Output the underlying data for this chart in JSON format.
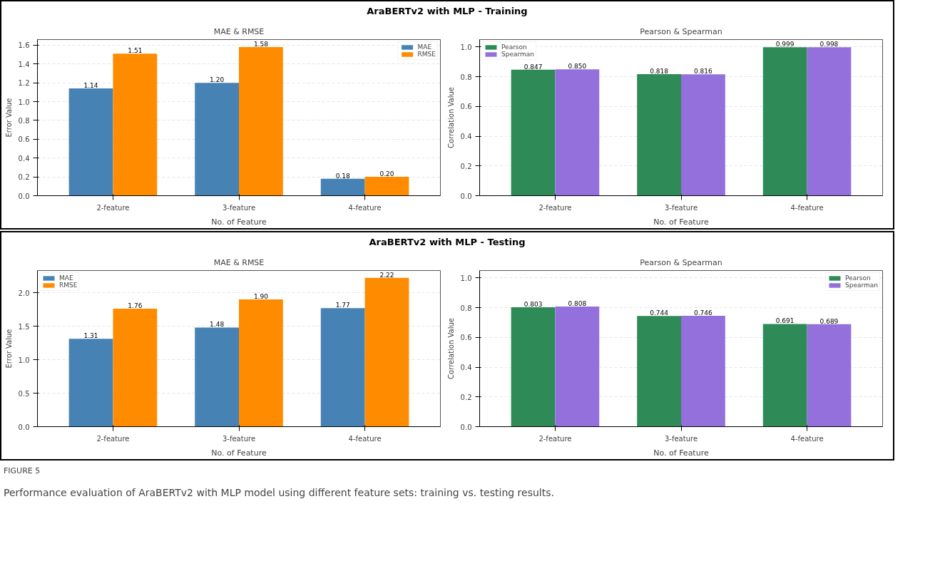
{
  "chart_data": [
    {
      "type": "bar",
      "subtitle": "AraBERTv2 with MLP - Training",
      "title": "MAE & RMSE",
      "xlabel": "No. of Feature",
      "ylabel": "Error Value",
      "categories": [
        "2-feature",
        "3-feature",
        "4-feature"
      ],
      "series": [
        {
          "name": "MAE",
          "color": "#4682b4",
          "values": [
            1.14,
            1.2,
            0.18
          ],
          "value_labels": [
            "1.14",
            "1.20",
            "0.18"
          ]
        },
        {
          "name": "RMSE",
          "color": "#ff8c00",
          "values": [
            1.51,
            1.58,
            0.2
          ],
          "value_labels": [
            "1.51",
            "1.58",
            "0.20"
          ]
        }
      ],
      "ylim": [
        0,
        1.66
      ],
      "yticks": [
        {
          "value": 0,
          "label": "0.0"
        },
        0.2,
        0.4,
        0.6,
        0.8,
        {
          "value": 1,
          "label": "1.0"
        },
        1.2,
        1.4,
        1.6
      ],
      "grid": "y",
      "legend": "top right"
    },
    {
      "type": "bar",
      "title": "Pearson & Spearman",
      "xlabel": "No. of Feature",
      "ylabel": "Correlation Value",
      "categories": [
        "2-feature",
        "3-feature",
        "4-feature"
      ],
      "series": [
        {
          "name": "Pearson",
          "color": "#2e8b57",
          "values": [
            0.847,
            0.818,
            0.999
          ],
          "value_labels": [
            "0.847",
            "0.818",
            "0.999"
          ]
        },
        {
          "name": "Spearman",
          "color": "#9370db",
          "values": [
            0.85,
            0.816,
            0.998
          ],
          "value_labels": [
            "0.850",
            "0.816",
            "0.998"
          ]
        }
      ],
      "ylim": [
        0,
        1.05
      ],
      "yticks": [
        {
          "value": 0,
          "label": "0.0"
        },
        0.2,
        0.4,
        0.6,
        0.8,
        {
          "value": 1,
          "label": "1.0"
        }
      ],
      "grid": "y",
      "legend": "top left"
    },
    {
      "type": "bar",
      "subtitle": "AraBERTv2 with MLP - Testing",
      "title": "MAE & RMSE",
      "xlabel": "No. of Feature",
      "ylabel": "Error Value",
      "categories": [
        "2-feature",
        "3-feature",
        "4-feature"
      ],
      "series": [
        {
          "name": "MAE",
          "color": "#4682b4",
          "values": [
            1.31,
            1.48,
            1.77
          ],
          "value_labels": [
            "1.31",
            "1.48",
            "1.77"
          ]
        },
        {
          "name": "RMSE",
          "color": "#ff8c00",
          "values": [
            1.76,
            1.9,
            2.22
          ],
          "value_labels": [
            "1.76",
            "1.90",
            "2.22"
          ]
        }
      ],
      "ylim": [
        0,
        2.33
      ],
      "yticks": [
        {
          "value": 0,
          "label": "0.0"
        },
        0.5,
        {
          "value": 1,
          "label": "1.0"
        },
        1.5,
        {
          "value": 2,
          "label": "2.0"
        }
      ],
      "grid": "y",
      "legend": "top left"
    },
    {
      "type": "bar",
      "title": "Pearson & Spearman",
      "xlabel": "No. of Feature",
      "ylabel": "Correlation Value",
      "categories": [
        "2-feature",
        "3-feature",
        "4-feature"
      ],
      "series": [
        {
          "name": "Pearson",
          "color": "#2e8b57",
          "values": [
            0.803,
            0.744,
            0.691
          ],
          "value_labels": [
            "0.803",
            "0.744",
            "0.691"
          ]
        },
        {
          "name": "Spearman",
          "color": "#9370db",
          "values": [
            0.808,
            0.746,
            0.689
          ],
          "value_labels": [
            "0.808",
            "0.746",
            "0.689"
          ]
        }
      ],
      "ylim": [
        0,
        1.05
      ],
      "yticks": [
        {
          "value": 0,
          "label": "0.0"
        },
        0.2,
        0.4,
        0.6,
        0.8,
        {
          "value": 1,
          "label": "1.0"
        }
      ],
      "grid": "y",
      "legend": "top right",
      "annotations": [
        "FIGURE 5",
        "Performance evaluation of AraBERTv2 with MLP model using different feature sets: training vs. testing results."
      ]
    }
  ]
}
